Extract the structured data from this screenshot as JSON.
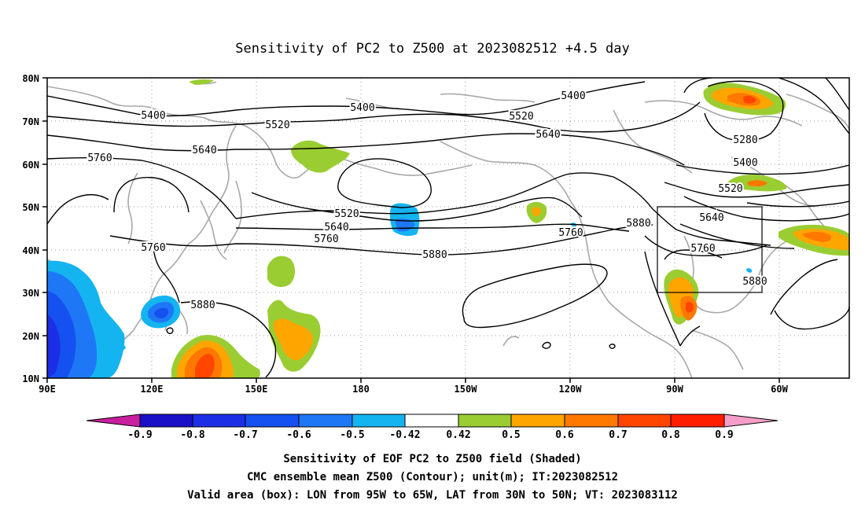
{
  "title": "Sensitivity of PC2 to Z500 at 2023082512 +4.5 day",
  "map": {
    "lat_labels": [
      "80N",
      "70N",
      "60N",
      "50N",
      "40N",
      "30N",
      "20N",
      "10N"
    ],
    "lon_labels": [
      "90E",
      "120E",
      "150E",
      "180",
      "150W",
      "120W",
      "90W",
      "60W"
    ],
    "contour_labels": [
      "5400",
      "5400",
      "5520",
      "5400",
      "5520",
      "5640",
      "5640",
      "5760",
      "5280",
      "5400",
      "5520",
      "5520",
      "5640",
      "5760",
      "5760",
      "5880",
      "5640",
      "5760",
      "5880",
      "5760",
      "5880",
      "5880"
    ],
    "box": {
      "lon_from": "95W",
      "lon_to": "65W",
      "lat_from": "30N",
      "lat_to": "50N"
    }
  },
  "colorbar": {
    "labels": [
      "-0.9",
      "-0.8",
      "-0.7",
      "-0.6",
      "-0.5",
      "-0.42",
      "0.42",
      "0.5",
      "0.6",
      "0.7",
      "0.8",
      "0.9"
    ],
    "colors": [
      "#1a10c8",
      "#1c2ee6",
      "#1550f0",
      "#1e78f5",
      "#14b4f0",
      "#ffffff",
      "#9acd32",
      "#ffa500",
      "#ff7800",
      "#ff4500",
      "#ff1e00"
    ],
    "low_end_color": "#c81ea0",
    "high_end_color": "#f59ec8"
  },
  "captions": [
    "Sensitivity of EOF PC2 to Z500 field (Shaded)",
    "CMC ensemble mean Z500 (Contour); unit(m); IT:2023082512",
    "Valid area (box): LON from 95W to 65W, LAT from 30N to 50N; VT: 2023083112"
  ]
}
